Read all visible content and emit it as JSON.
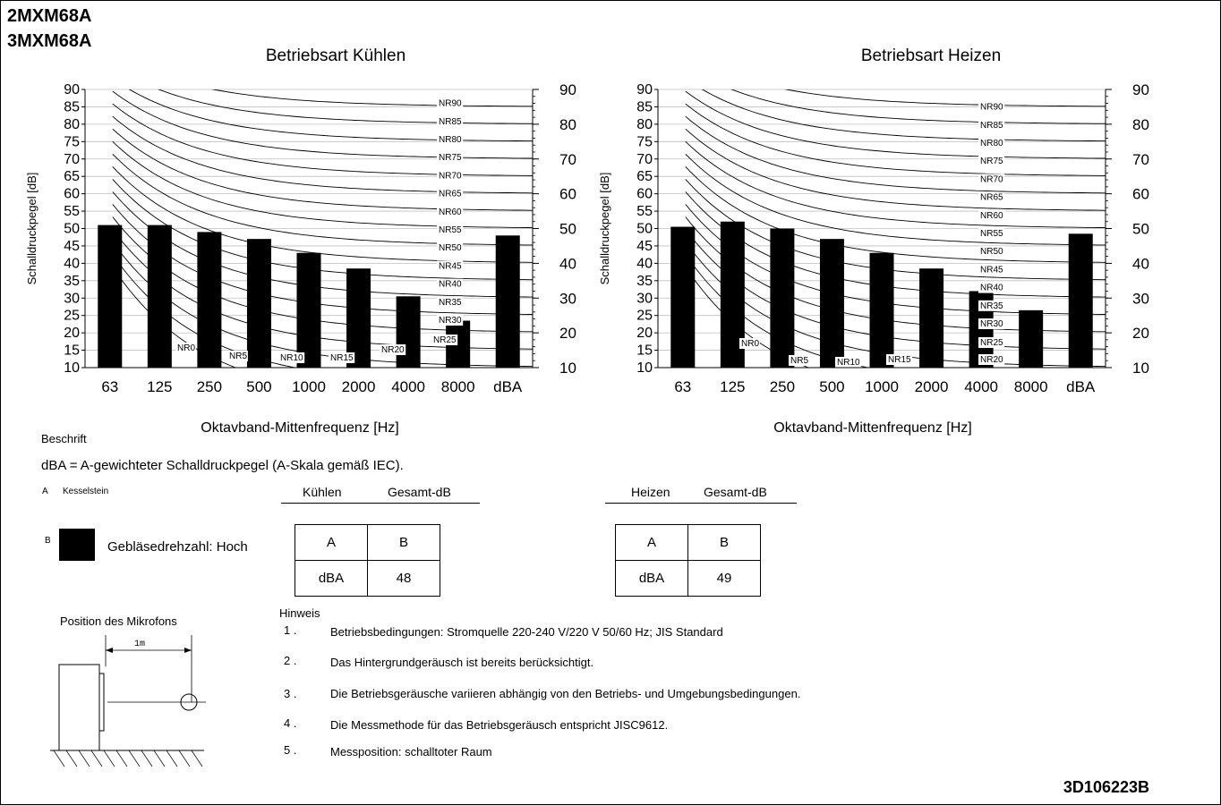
{
  "header": {
    "models": [
      "2MXM68A",
      "3MXM68A"
    ]
  },
  "chart_data": [
    {
      "type": "bar",
      "title": "Betriebsart Kühlen",
      "xlabel": "Oktavband-Mittenfrequenz [Hz]",
      "ylabel": "Schalldruckpegel [dB]",
      "categories": [
        "63",
        "125",
        "250",
        "500",
        "1000",
        "2000",
        "4000",
        "8000",
        "dBA"
      ],
      "values": [
        51,
        51,
        49,
        47,
        43,
        38.5,
        30.5,
        23.5,
        48
      ],
      "ylim": [
        10,
        90
      ],
      "yticks_left": [
        "10",
        "15",
        "20",
        "25",
        "30",
        "35",
        "40",
        "45",
        "50",
        "55",
        "60",
        "65",
        "70",
        "75",
        "80",
        "85",
        "90"
      ],
      "yticks_right": [
        "10",
        "20",
        "30",
        "40",
        "50",
        "60",
        "70",
        "80",
        "90"
      ],
      "nr_curves": [
        "NR0",
        "NR5",
        "NR10",
        "NR15",
        "NR20",
        "NR25",
        "NR30",
        "NR35",
        "NR40",
        "NR45",
        "NR50",
        "NR55",
        "NR60",
        "NR65",
        "NR70",
        "NR75",
        "NR80",
        "NR85",
        "NR90"
      ],
      "grid": true
    },
    {
      "type": "bar",
      "title": "Betriebsart Heizen",
      "xlabel": "Oktavband-Mittenfrequenz [Hz]",
      "ylabel": "Schalldruckpegel [dB]",
      "categories": [
        "63",
        "125",
        "250",
        "500",
        "1000",
        "2000",
        "4000",
        "8000",
        "dBA"
      ],
      "values": [
        50.5,
        52,
        50,
        47,
        43,
        38.5,
        32,
        26.5,
        48.5
      ],
      "ylim": [
        10,
        90
      ],
      "yticks_left": [
        "10",
        "15",
        "20",
        "25",
        "30",
        "35",
        "40",
        "45",
        "50",
        "55",
        "60",
        "65",
        "70",
        "75",
        "80",
        "85",
        "90"
      ],
      "yticks_right": [
        "10",
        "20",
        "30",
        "40",
        "50",
        "60",
        "70",
        "80",
        "90"
      ],
      "nr_curves": [
        "NR0",
        "NR5",
        "NR10",
        "NR15",
        "NR20",
        "NR25",
        "NR30",
        "NR35",
        "NR40",
        "NR45",
        "NR50",
        "NR55",
        "NR60",
        "NR65",
        "NR70",
        "NR75",
        "NR80",
        "NR85",
        "NR90"
      ],
      "grid": true
    }
  ],
  "legend": {
    "title": "Beschrift",
    "dba_definition": "dBA = A-gewichteter Schalldruckpegel (A-Skala gemäß IEC).",
    "a_letter": "A",
    "a_label": "Kesselstein",
    "b_letter": "B",
    "b_label": "Gebläsedrehzahl: Hoch"
  },
  "tables": [
    {
      "head1": "Kühlen",
      "head2": "Gesamt-dB",
      "col_a": "A",
      "col_b": "B",
      "row_label": "dBA",
      "row_value": "48"
    },
    {
      "head1": "Heizen",
      "head2": "Gesamt-dB",
      "col_a": "A",
      "col_b": "B",
      "row_label": "dBA",
      "row_value": "49"
    }
  ],
  "mic": {
    "title": "Position des Mikrofons",
    "distance": "1m"
  },
  "notes": {
    "title": "Hinweis",
    "items": [
      {
        "num": "1 .",
        "text": "Betriebsbedingungen: Stromquelle 220-240 V/220 V 50/60 Hz; JIS Standard"
      },
      {
        "num": "2 .",
        "text": "Das Hintergrundgeräusch ist bereits berücksichtigt."
      },
      {
        "num": "3 .",
        "text": "Die Betriebsgeräusche variieren abhängig von den Betriebs- und Umgebungsbedingungen."
      },
      {
        "num": "4 .",
        "text": "Die Messmethode für das Betriebsgeräusch entspricht JISC9612."
      },
      {
        "num": "5 .",
        "text": "Messposition: schalltoter Raum"
      }
    ]
  },
  "footer": {
    "doc_number": "3D106223B"
  },
  "colors": {
    "bar": "#000000",
    "grid": "#bfbfbf",
    "curve": "#000000"
  }
}
